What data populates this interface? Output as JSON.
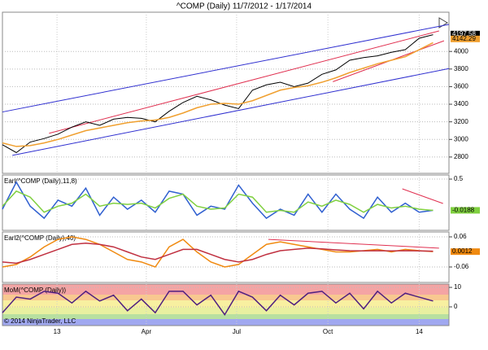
{
  "chart_data": [
    {
      "type": "line",
      "title": "^COMP (Daily)  11/7/2012 - 1/17/2014",
      "x": [
        0,
        14,
        28,
        42,
        56,
        70,
        84,
        98,
        112,
        126,
        140,
        154,
        168,
        182,
        196,
        210,
        224,
        238,
        252,
        266,
        280,
        294,
        308,
        322,
        336,
        350,
        364,
        378,
        392,
        406,
        420,
        434
      ],
      "xlim": [
        0,
        450
      ],
      "ylim": [
        2614,
        4446
      ],
      "yticks": [
        2800,
        3000,
        3200,
        3400,
        3600,
        3800,
        4000
      ],
      "grid": true,
      "series": [
        {
          "color": "#000000",
          "values": [
            2940,
            2850,
            2970,
            3010,
            3060,
            3140,
            3200,
            3160,
            3230,
            3250,
            3240,
            3200,
            3320,
            3420,
            3490,
            3450,
            3390,
            3350,
            3560,
            3620,
            3650,
            3600,
            3640,
            3740,
            3790,
            3900,
            3930,
            3950,
            3990,
            4020,
            4150,
            4190
          ],
          "last_value": 4197.58
        },
        {
          "color": "#f0a030",
          "values": [
            2960,
            2920,
            2930,
            2960,
            3000,
            3050,
            3100,
            3130,
            3160,
            3190,
            3210,
            3220,
            3250,
            3300,
            3360,
            3400,
            3410,
            3400,
            3440,
            3500,
            3560,
            3590,
            3610,
            3650,
            3700,
            3760,
            3810,
            3860,
            3900,
            3940,
            4020,
            4100
          ],
          "last_value": 4142.29
        }
      ],
      "trendlines": [
        {
          "color": "#3030d0",
          "x": [
            0,
            450
          ],
          "y": [
            3312,
            4307
          ]
        },
        {
          "color": "#3030d0",
          "x": [
            10,
            450
          ],
          "y": [
            2819,
            3805
          ]
        },
        {
          "color": "#e03050",
          "x": [
            47,
            440
          ],
          "y": [
            3070,
            4233
          ]
        },
        {
          "color": "#e03050",
          "x": [
            333,
            445
          ],
          "y": [
            3656,
            4121
          ]
        }
      ]
    },
    {
      "type": "line",
      "label": "Earl(^COMP (Daily),11,8)",
      "x": [
        0,
        14,
        28,
        42,
        56,
        70,
        84,
        98,
        112,
        126,
        140,
        154,
        168,
        182,
        196,
        210,
        224,
        238,
        252,
        266,
        280,
        294,
        308,
        322,
        336,
        350,
        364,
        378,
        392,
        406,
        420,
        434
      ],
      "xlim": [
        0,
        450
      ],
      "ylim": [
        -0.351,
        0.568
      ],
      "yticks": [
        0.5
      ],
      "grid": true,
      "series": [
        {
          "color": "#3060d0",
          "values": [
            0.0,
            0.45,
            0.05,
            -0.15,
            0.15,
            0.05,
            0.35,
            -0.1,
            0.2,
            0.0,
            0.15,
            -0.05,
            0.3,
            0.25,
            -0.1,
            0.05,
            0.0,
            0.4,
            0.1,
            -0.15,
            0.0,
            -0.1,
            0.25,
            -0.05,
            0.25,
            0.0,
            -0.15,
            0.2,
            -0.05,
            0.1,
            -0.05,
            -0.0188
          ]
        },
        {
          "color": "#80d040",
          "values": [
            0.05,
            0.3,
            0.2,
            -0.05,
            0.05,
            0.1,
            0.25,
            0.05,
            0.1,
            0.08,
            0.1,
            0.02,
            0.18,
            0.25,
            0.05,
            0.0,
            0.02,
            0.25,
            0.2,
            -0.05,
            -0.02,
            -0.05,
            0.12,
            0.05,
            0.15,
            0.08,
            -0.05,
            0.08,
            0.02,
            0.05,
            0.0,
            -0.02
          ]
        }
      ],
      "trendlines": [
        {
          "color": "#e03050",
          "x": [
            403,
            444
          ],
          "y": [
            0.338,
            0.095
          ]
        }
      ]
    },
    {
      "type": "line",
      "label": "Earl2(^COMP (Daily),40)",
      "x": [
        0,
        14,
        28,
        42,
        56,
        70,
        84,
        98,
        112,
        126,
        140,
        154,
        168,
        182,
        196,
        210,
        224,
        238,
        252,
        266,
        280,
        294,
        308,
        322,
        336,
        350,
        364,
        378,
        392,
        406,
        420,
        434
      ],
      "xlim": [
        0,
        450
      ],
      "ylim": [
        -0.1216,
        0.0795
      ],
      "yticks": [
        0.06,
        -0.06
      ],
      "grid": true,
      "series": [
        {
          "color": "#f08a10",
          "values": [
            -0.06,
            -0.05,
            -0.02,
            0.02,
            0.05,
            0.06,
            0.05,
            0.03,
            0.0,
            -0.03,
            -0.04,
            -0.06,
            0.02,
            0.05,
            0.0,
            -0.04,
            -0.06,
            -0.05,
            -0.01,
            0.03,
            0.04,
            0.03,
            0.02,
            0.01,
            0.0,
            0.0,
            0.005,
            0.01,
            0.0,
            0.01,
            0.005,
            0.0012
          ]
        },
        {
          "color": "#c03040",
          "values": [
            -0.04,
            -0.045,
            -0.03,
            -0.01,
            0.01,
            0.03,
            0.035,
            0.03,
            0.02,
            0.0,
            -0.02,
            -0.03,
            -0.01,
            0.01,
            0.01,
            -0.01,
            -0.03,
            -0.04,
            -0.03,
            -0.01,
            0.005,
            0.01,
            0.015,
            0.012,
            0.008,
            0.005,
            0.004,
            0.005,
            0.004,
            0.005,
            0.004,
            0.003
          ]
        }
      ],
      "trendlines": [
        {
          "color": "#e03050",
          "x": [
            268,
            440
          ],
          "y": [
            0.05,
            0.015
          ]
        }
      ]
    },
    {
      "type": "line",
      "label": "MoM(^COMP (Daily))",
      "annotation": "© 2014 NinjaTrader, LLC",
      "x": [
        0,
        14,
        28,
        42,
        56,
        70,
        84,
        98,
        112,
        126,
        140,
        154,
        168,
        182,
        196,
        210,
        224,
        238,
        252,
        266,
        280,
        294,
        308,
        322,
        336,
        350,
        364,
        378,
        392,
        406,
        420,
        434
      ],
      "xlim": [
        0,
        450
      ],
      "ylim": [
        -9.6,
        11.7
      ],
      "yticks": [
        10,
        0
      ],
      "grid": true,
      "xticks": [
        {
          "value": 55,
          "label": "13"
        },
        {
          "value": 145,
          "label": "Apr"
        },
        {
          "value": 236,
          "label": "Jul"
        },
        {
          "value": 328,
          "label": "Oct"
        },
        {
          "value": 420,
          "label": "14"
        }
      ],
      "series": [
        {
          "color": "#502080",
          "values": [
            -3,
            5,
            4,
            8,
            7,
            2,
            8,
            3,
            6,
            -2,
            4,
            -3,
            8,
            8,
            1,
            6,
            -4,
            8,
            5,
            -2,
            6,
            1,
            7,
            8,
            2,
            7,
            -1,
            8,
            2,
            7,
            5,
            3
          ]
        }
      ]
    }
  ]
}
